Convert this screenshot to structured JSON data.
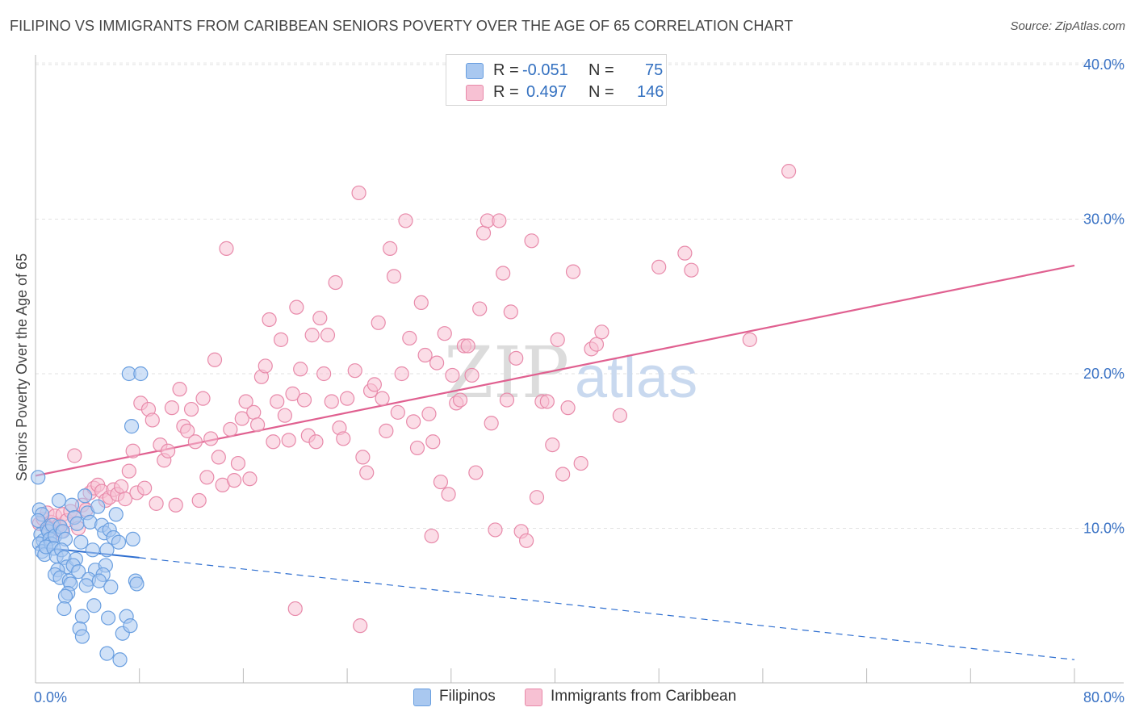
{
  "header": {
    "title": "FILIPINO VS IMMIGRANTS FROM CARIBBEAN SENIORS POVERTY OVER THE AGE OF 65 CORRELATION CHART",
    "source": "Source: ZipAtlas.com"
  },
  "watermark": {
    "zip": "ZIP",
    "atlas": "atlas"
  },
  "legend_top": [
    {
      "r_label": "R =",
      "r_value": "-0.051",
      "n_label": "N =",
      "n_value": "75",
      "color": "#a9c8f0",
      "border": "#6a9fe0"
    },
    {
      "r_label": "R =",
      "r_value": "0.497",
      "n_label": "N =",
      "n_value": "146",
      "color": "#f7c1d3",
      "border": "#e88aaa"
    }
  ],
  "legend_bottom": [
    {
      "label": "Filipinos",
      "color": "#a9c8f0",
      "border": "#6a9fe0"
    },
    {
      "label": "Immigrants from Caribbean",
      "color": "#f7c1d3",
      "border": "#e88aaa"
    }
  ],
  "chart_data": {
    "type": "scatter",
    "title": "FILIPINO VS IMMIGRANTS FROM CARIBBEAN SENIORS POVERTY OVER THE AGE OF 65 CORRELATION CHART",
    "xlabel": "",
    "ylabel": "Seniors Poverty Over the Age of 65",
    "xlim": [
      0,
      80
    ],
    "ylim": [
      0,
      40
    ],
    "x_tick_labels": [
      "0.0%",
      "80.0%"
    ],
    "y_ticks": [
      10,
      20,
      30,
      40
    ],
    "y_tick_labels": [
      "10.0%",
      "20.0%",
      "30.0%",
      "40.0%"
    ],
    "grid": true,
    "legend_position": "top-center",
    "series": [
      {
        "name": "Filipinos",
        "color": "#6a9fe0",
        "fill": "#a9c8f0",
        "trend": {
          "x0": 0,
          "y0": 8.8,
          "x1": 8,
          "y1": 8.1,
          "dashed_to_x": 80,
          "dashed_to_y": 1.5,
          "color": "#2f6fd0"
        },
        "points": [
          [
            0.2,
            13.3
          ],
          [
            0.3,
            11.2
          ],
          [
            0.5,
            10.9
          ],
          [
            0.2,
            10.5
          ],
          [
            0.4,
            9.6
          ],
          [
            0.6,
            9.2
          ],
          [
            0.3,
            9.0
          ],
          [
            0.5,
            8.5
          ],
          [
            0.7,
            8.3
          ],
          [
            0.9,
            10.0
          ],
          [
            1.0,
            9.8
          ],
          [
            1.1,
            9.3
          ],
          [
            1.2,
            9.0
          ],
          [
            0.8,
            8.8
          ],
          [
            1.3,
            10.2
          ],
          [
            1.5,
            9.5
          ],
          [
            1.4,
            8.7
          ],
          [
            1.6,
            8.2
          ],
          [
            1.8,
            11.8
          ],
          [
            1.9,
            10.1
          ],
          [
            2.1,
            9.8
          ],
          [
            2.3,
            9.3
          ],
          [
            2.0,
            8.6
          ],
          [
            2.2,
            8.1
          ],
          [
            2.4,
            7.5
          ],
          [
            1.7,
            7.3
          ],
          [
            1.5,
            7.0
          ],
          [
            1.9,
            6.8
          ],
          [
            2.6,
            6.6
          ],
          [
            2.8,
            11.5
          ],
          [
            3.0,
            10.7
          ],
          [
            3.2,
            10.3
          ],
          [
            3.5,
            9.1
          ],
          [
            3.1,
            8.0
          ],
          [
            2.9,
            7.6
          ],
          [
            3.3,
            7.2
          ],
          [
            2.7,
            6.4
          ],
          [
            2.5,
            5.8
          ],
          [
            2.3,
            5.6
          ],
          [
            2.2,
            4.8
          ],
          [
            3.6,
            4.3
          ],
          [
            3.4,
            3.5
          ],
          [
            3.6,
            3.0
          ],
          [
            3.8,
            12.1
          ],
          [
            4.0,
            11.0
          ],
          [
            4.2,
            10.4
          ],
          [
            4.4,
            8.6
          ],
          [
            4.6,
            7.3
          ],
          [
            4.1,
            6.7
          ],
          [
            3.9,
            6.3
          ],
          [
            4.5,
            5.0
          ],
          [
            4.8,
            11.4
          ],
          [
            5.1,
            10.2
          ],
          [
            5.3,
            9.7
          ],
          [
            5.5,
            8.6
          ],
          [
            5.4,
            7.6
          ],
          [
            5.2,
            7.0
          ],
          [
            4.9,
            6.6
          ],
          [
            5.7,
            9.9
          ],
          [
            6.0,
            9.4
          ],
          [
            6.2,
            10.9
          ],
          [
            6.4,
            9.1
          ],
          [
            5.8,
            6.2
          ],
          [
            5.6,
            4.2
          ],
          [
            5.5,
            1.9
          ],
          [
            6.7,
            3.2
          ],
          [
            6.5,
            1.5
          ],
          [
            7.0,
            4.3
          ],
          [
            7.3,
            3.7
          ],
          [
            7.2,
            20.0
          ],
          [
            7.5,
            9.3
          ],
          [
            7.7,
            6.6
          ],
          [
            7.8,
            6.4
          ],
          [
            7.4,
            16.6
          ],
          [
            8.1,
            20.0
          ]
        ]
      },
      {
        "name": "Immigrants from Caribbean",
        "color": "#e88aaa",
        "fill": "#f7c1d3",
        "trend": {
          "x0": 0,
          "y0": 13.4,
          "x1": 80,
          "y1": 27.0,
          "color": "#e06090"
        },
        "points": [
          [
            0.3,
            10.3
          ],
          [
            0.6,
            10.6
          ],
          [
            0.9,
            11.0
          ],
          [
            1.2,
            10.4
          ],
          [
            1.5,
            10.8
          ],
          [
            1.8,
            10.2
          ],
          [
            2.1,
            10.9
          ],
          [
            2.4,
            10.5
          ],
          [
            2.7,
            11.1
          ],
          [
            3.0,
            10.7
          ],
          [
            3.3,
            10.0
          ],
          [
            1.1,
            9.9
          ],
          [
            1.4,
            9.6
          ],
          [
            2.0,
            9.8
          ],
          [
            3.6,
            11.5
          ],
          [
            3.9,
            11.2
          ],
          [
            4.2,
            12.3
          ],
          [
            4.5,
            12.6
          ],
          [
            4.8,
            12.8
          ],
          [
            5.1,
            12.4
          ],
          [
            5.4,
            11.8
          ],
          [
            5.7,
            12.0
          ],
          [
            6.0,
            12.5
          ],
          [
            3.0,
            14.7
          ],
          [
            6.3,
            12.2
          ],
          [
            6.6,
            12.7
          ],
          [
            6.9,
            11.9
          ],
          [
            7.2,
            13.7
          ],
          [
            7.5,
            15.0
          ],
          [
            7.8,
            12.3
          ],
          [
            8.1,
            18.1
          ],
          [
            8.4,
            12.6
          ],
          [
            8.7,
            17.7
          ],
          [
            9.0,
            17.0
          ],
          [
            9.3,
            11.6
          ],
          [
            9.6,
            15.4
          ],
          [
            9.9,
            14.4
          ],
          [
            10.2,
            15.0
          ],
          [
            10.5,
            17.8
          ],
          [
            10.8,
            11.5
          ],
          [
            11.1,
            19.0
          ],
          [
            11.4,
            16.6
          ],
          [
            11.7,
            16.3
          ],
          [
            12.0,
            17.7
          ],
          [
            12.3,
            15.6
          ],
          [
            12.6,
            11.8
          ],
          [
            12.9,
            18.4
          ],
          [
            13.2,
            13.3
          ],
          [
            13.5,
            15.8
          ],
          [
            13.8,
            20.9
          ],
          [
            14.1,
            14.6
          ],
          [
            14.4,
            12.8
          ],
          [
            14.7,
            28.1
          ],
          [
            15.0,
            16.4
          ],
          [
            15.3,
            13.1
          ],
          [
            15.6,
            14.2
          ],
          [
            15.9,
            17.1
          ],
          [
            16.2,
            18.2
          ],
          [
            16.5,
            13.2
          ],
          [
            16.8,
            17.5
          ],
          [
            17.1,
            16.7
          ],
          [
            17.4,
            19.8
          ],
          [
            17.7,
            20.5
          ],
          [
            18.0,
            23.5
          ],
          [
            18.3,
            15.6
          ],
          [
            18.6,
            18.2
          ],
          [
            18.9,
            22.2
          ],
          [
            19.2,
            17.3
          ],
          [
            19.5,
            15.7
          ],
          [
            19.8,
            18.7
          ],
          [
            20.1,
            24.3
          ],
          [
            20.4,
            20.3
          ],
          [
            20.7,
            18.3
          ],
          [
            21.0,
            16.0
          ],
          [
            21.3,
            22.5
          ],
          [
            21.6,
            15.6
          ],
          [
            21.9,
            23.6
          ],
          [
            22.2,
            20.0
          ],
          [
            22.5,
            22.5
          ],
          [
            22.8,
            18.2
          ],
          [
            23.1,
            25.9
          ],
          [
            23.4,
            16.5
          ],
          [
            23.7,
            15.8
          ],
          [
            24.0,
            18.4
          ],
          [
            24.6,
            20.2
          ],
          [
            24.9,
            31.7
          ],
          [
            25.2,
            14.6
          ],
          [
            25.5,
            13.6
          ],
          [
            25.8,
            18.9
          ],
          [
            26.1,
            19.3
          ],
          [
            26.4,
            23.3
          ],
          [
            26.7,
            18.4
          ],
          [
            27.0,
            16.3
          ],
          [
            27.3,
            28.1
          ],
          [
            27.6,
            26.3
          ],
          [
            27.9,
            17.5
          ],
          [
            28.2,
            20.0
          ],
          [
            28.5,
            29.9
          ],
          [
            28.8,
            22.3
          ],
          [
            29.1,
            16.9
          ],
          [
            29.4,
            15.2
          ],
          [
            29.7,
            24.6
          ],
          [
            30.0,
            21.2
          ],
          [
            30.3,
            17.4
          ],
          [
            30.6,
            15.6
          ],
          [
            30.9,
            20.7
          ],
          [
            31.2,
            13.0
          ],
          [
            31.5,
            22.6
          ],
          [
            31.8,
            12.2
          ],
          [
            32.1,
            19.9
          ],
          [
            32.4,
            18.1
          ],
          [
            32.7,
            18.3
          ],
          [
            33.0,
            21.8
          ],
          [
            33.3,
            21.8
          ],
          [
            33.6,
            19.9
          ],
          [
            33.9,
            13.6
          ],
          [
            34.2,
            24.2
          ],
          [
            34.5,
            29.1
          ],
          [
            34.8,
            29.9
          ],
          [
            35.1,
            16.8
          ],
          [
            35.4,
            9.9
          ],
          [
            35.7,
            29.9
          ],
          [
            36.0,
            26.5
          ],
          [
            36.3,
            18.3
          ],
          [
            36.6,
            24.0
          ],
          [
            37.0,
            21.0
          ],
          [
            37.4,
            9.8
          ],
          [
            37.8,
            9.2
          ],
          [
            38.2,
            28.6
          ],
          [
            38.6,
            12.0
          ],
          [
            39.0,
            18.2
          ],
          [
            39.4,
            18.2
          ],
          [
            39.8,
            15.4
          ],
          [
            40.2,
            22.2
          ],
          [
            40.6,
            13.5
          ],
          [
            41.0,
            17.8
          ],
          [
            41.4,
            26.6
          ],
          [
            42.0,
            14.2
          ],
          [
            42.8,
            21.6
          ],
          [
            43.2,
            21.9
          ],
          [
            43.6,
            22.7
          ],
          [
            45.0,
            17.3
          ],
          [
            48.0,
            26.9
          ],
          [
            50.0,
            27.8
          ],
          [
            50.5,
            26.7
          ],
          [
            55.0,
            22.2
          ],
          [
            58.0,
            33.1
          ],
          [
            20.0,
            4.8
          ],
          [
            25.0,
            3.7
          ],
          [
            30.5,
            9.5
          ]
        ]
      }
    ]
  }
}
